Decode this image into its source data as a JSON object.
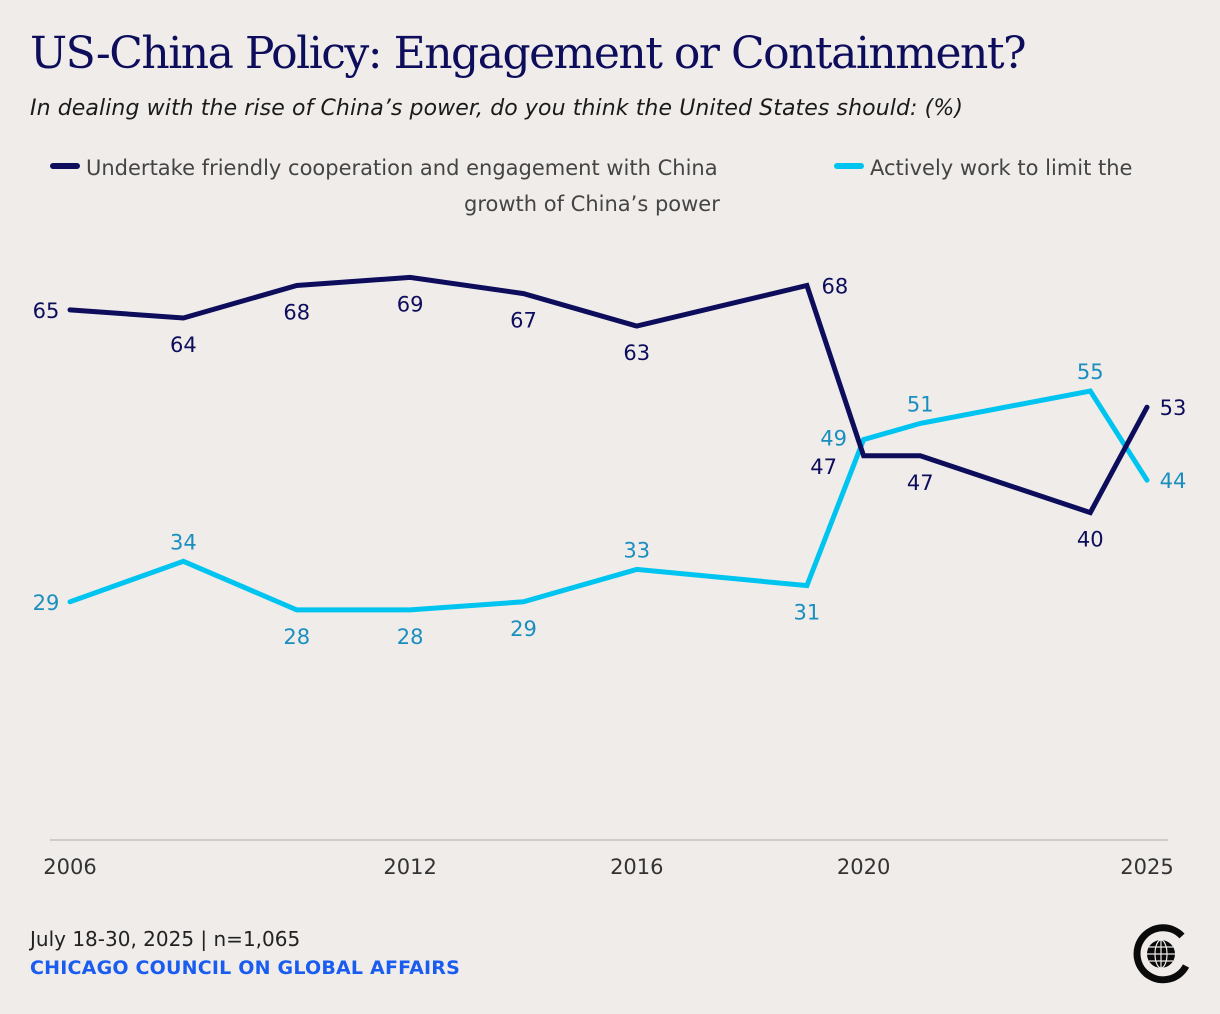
{
  "header": {
    "title": "US-China Policy: Engagement or Containment?",
    "subtitle": "In dealing with the rise of China’s power, do you think the United States should: (%)"
  },
  "legend": {
    "items": [
      {
        "label": "Undertake friendly cooperation and engagement with China",
        "color": "#0d0d5c"
      },
      {
        "label_line1": "Actively work to limit the",
        "label_line2": "growth of China’s power",
        "color": "#00c4f0"
      }
    ]
  },
  "chart_data": {
    "type": "line",
    "title": "US-China Policy: Engagement or Containment?",
    "subtitle": "In dealing with the rise of China’s power, do you think the United States should: (%)",
    "xlabel": "",
    "ylabel": "",
    "x": [
      2006,
      2008,
      2010,
      2012,
      2014,
      2016,
      2019,
      2020,
      2021,
      2024,
      2025
    ],
    "x_ticks": [
      "2006",
      "2012",
      "2016",
      "2020",
      "2025"
    ],
    "xlim": [
      2006,
      2025
    ],
    "ylim": [
      0,
      100
    ],
    "grid": false,
    "legend_position": "top",
    "series": [
      {
        "name": "Undertake friendly cooperation and engagement with China",
        "color": "#0d0d5c",
        "label_color": "#0d0d5c",
        "values": [
          65,
          64,
          68,
          69,
          67,
          63,
          68,
          47,
          47,
          40,
          53
        ]
      },
      {
        "name": "Actively work to limit the growth of China’s power",
        "color": "#00c4f0",
        "label_color": "#1a8fbf",
        "values": [
          29,
          34,
          28,
          28,
          29,
          33,
          31,
          49,
          51,
          55,
          44
        ]
      }
    ]
  },
  "footer": {
    "source": "July 18-30, 2025 | n=1,065",
    "organization": "CHICAGO COUNCIL ON GLOBAL AFFAIRS",
    "logo_icon": "globe-c-logo"
  }
}
